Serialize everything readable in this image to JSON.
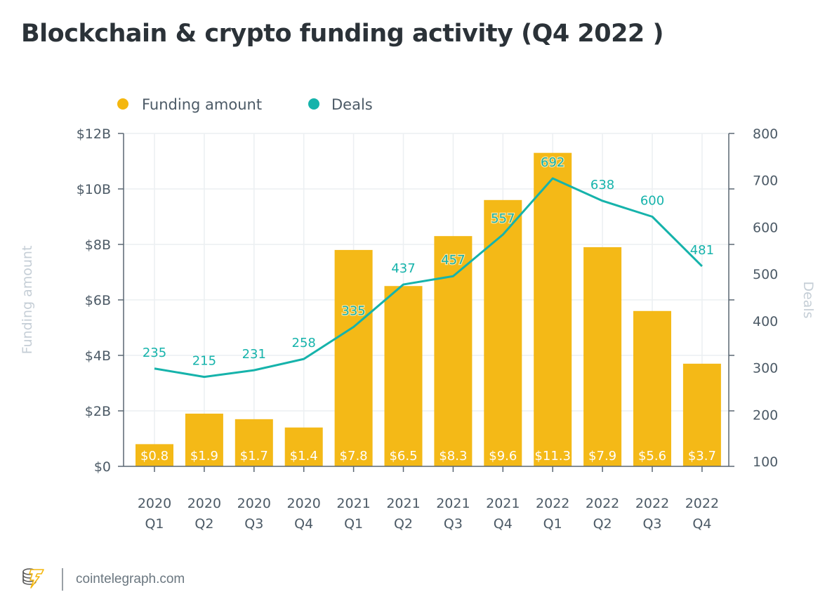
{
  "title": "Blockchain & crypto funding activity (Q4 2022 )",
  "legend": [
    {
      "label": "Funding amount",
      "color": "#f4b70f"
    },
    {
      "label": "Deals",
      "color": "#16b3ab"
    }
  ],
  "footer": {
    "logo_icon": "cointelegraph-logo-icon",
    "site": "cointelegraph.com"
  },
  "chart_data": {
    "type": "bar+line",
    "title": "Blockchain & crypto funding activity (Q4 2022 )",
    "categories": [
      [
        "2020",
        "Q1"
      ],
      [
        "2020",
        "Q2"
      ],
      [
        "2020",
        "Q3"
      ],
      [
        "2020",
        "Q4"
      ],
      [
        "2021",
        "Q1"
      ],
      [
        "2021",
        "Q2"
      ],
      [
        "2021",
        "Q3"
      ],
      [
        "2021",
        "Q4"
      ],
      [
        "2022",
        "Q1"
      ],
      [
        "2022",
        "Q2"
      ],
      [
        "2022",
        "Q3"
      ],
      [
        "2022",
        "Q4"
      ]
    ],
    "series": [
      {
        "name": "Funding amount",
        "type": "bar",
        "axis": "left",
        "unit": "$B",
        "values": [
          0.8,
          1.9,
          1.7,
          1.4,
          7.8,
          6.5,
          8.3,
          9.6,
          11.3,
          7.9,
          5.6,
          3.7
        ],
        "labels": [
          "$0.8",
          "$1.9",
          "$1.7",
          "$1.4",
          "$7.8",
          "$6.5",
          "$8.3",
          "$9.6",
          "$11.3",
          "$7.9",
          "$5.6",
          "$3.7"
        ],
        "color": "#f4b70f"
      },
      {
        "name": "Deals",
        "type": "line",
        "axis": "right",
        "values": [
          235,
          215,
          231,
          258,
          335,
          437,
          457,
          557,
          692,
          638,
          600,
          481
        ],
        "color": "#16b3ab"
      }
    ],
    "left_axis": {
      "title": "Funding amount",
      "ticks": [
        "$0",
        "$2B",
        "$4B",
        "$6B",
        "$8B",
        "$10B",
        "$12B"
      ],
      "range": [
        0,
        12
      ]
    },
    "right_axis": {
      "title": "Deals",
      "ticks": [
        "100",
        "200",
        "300",
        "400",
        "500",
        "600",
        "700",
        "800"
      ],
      "range": [
        0,
        800
      ]
    },
    "grid": true,
    "legend_position": "top-left"
  }
}
